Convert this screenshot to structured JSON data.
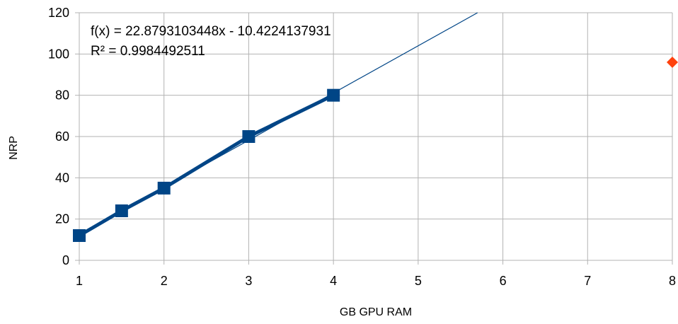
{
  "chart_data": {
    "type": "line",
    "xlabel": "GB GPU RAM",
    "ylabel": "NRP",
    "xlim": [
      1,
      8
    ],
    "ylim": [
      0,
      120
    ],
    "x_ticks": [
      "1",
      "2",
      "3",
      "4",
      "5",
      "6",
      "7",
      "8"
    ],
    "y_ticks": [
      "0",
      "20",
      "40",
      "60",
      "80",
      "100",
      "120"
    ],
    "grid": true,
    "series": [
      {
        "marker": "square",
        "color": "#004586",
        "x": [
          1,
          1.5,
          2,
          3,
          4
        ],
        "y": [
          12,
          24,
          35,
          60,
          80
        ]
      },
      {
        "marker": "diamond",
        "color": "#ff420e",
        "x": [
          8
        ],
        "y": [
          96
        ]
      }
    ],
    "trendline": {
      "slope": 22.8793103448,
      "intercept": -10.4224137931,
      "color": "#004586"
    },
    "annotations": {
      "equation": "f(x) = 22.8793103448x - 10.4224137931",
      "r_squared": "R² = 0.9984492511"
    }
  }
}
